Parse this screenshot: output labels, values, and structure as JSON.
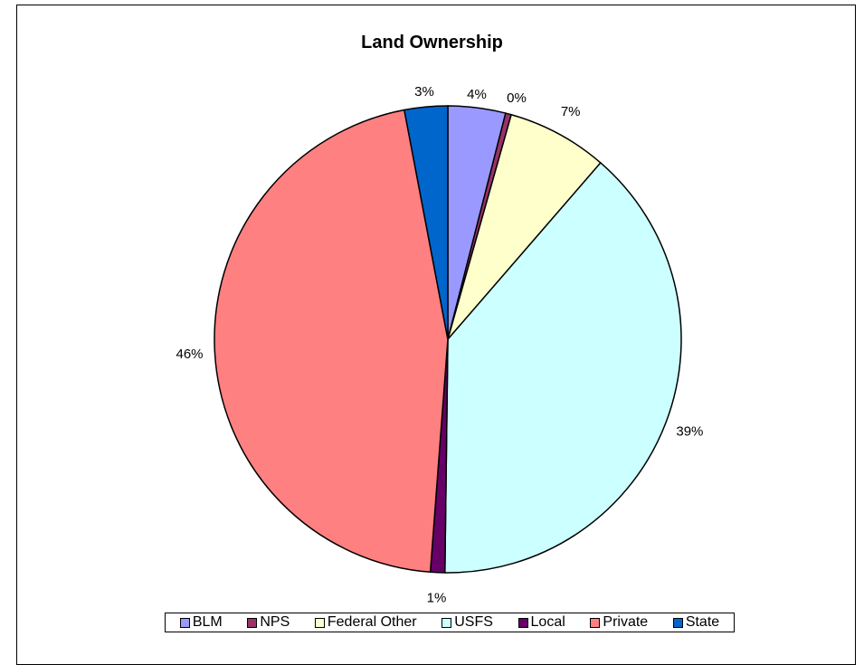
{
  "chart_data": {
    "type": "pie",
    "title": "Land Ownership",
    "categories": [
      "BLM",
      "NPS",
      "Federal Other",
      "USFS",
      "Local",
      "Private",
      "State"
    ],
    "values": [
      4,
      0.4,
      7,
      39,
      1,
      46,
      3
    ],
    "labels": [
      "4%",
      "0%",
      "7%",
      "39%",
      "1%",
      "46%",
      "3%"
    ],
    "colors": [
      "#9999FF",
      "#993366",
      "#FFFFCC",
      "#CCFFFF",
      "#660066",
      "#FF8080",
      "#0066CC"
    ],
    "legend_position": "bottom",
    "start_angle_deg": 0,
    "direction": "clockwise"
  }
}
